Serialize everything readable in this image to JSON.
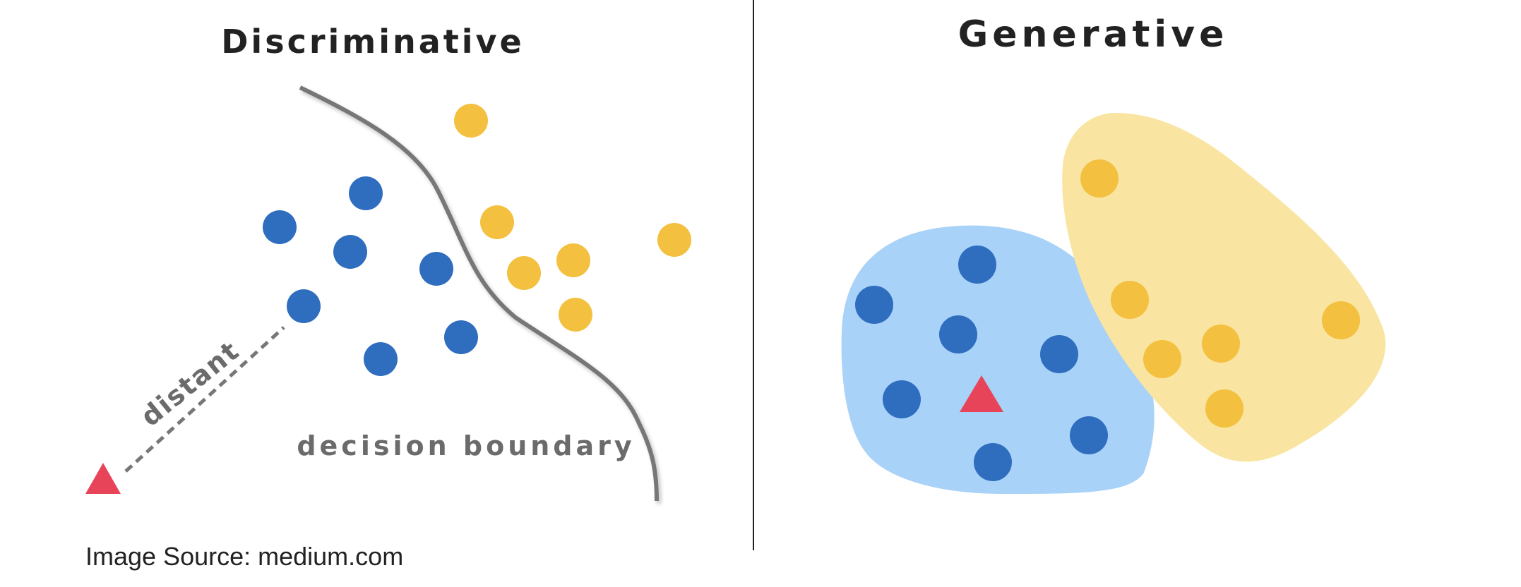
{
  "left_panel": {
    "title": "Discriminative",
    "boundary_label": "decision boundary",
    "distance_label": "distant"
  },
  "right_panel": {
    "title": "Generative"
  },
  "caption": "Image Source: medium.com",
  "colors": {
    "blue_point": "#2f6dbf",
    "yellow_point": "#f3c03f",
    "query_triangle": "#e84459",
    "blue_region": "#a8d2f8",
    "yellow_region": "#f9e5a1",
    "boundary": "#777777",
    "divider": "#222222"
  }
}
